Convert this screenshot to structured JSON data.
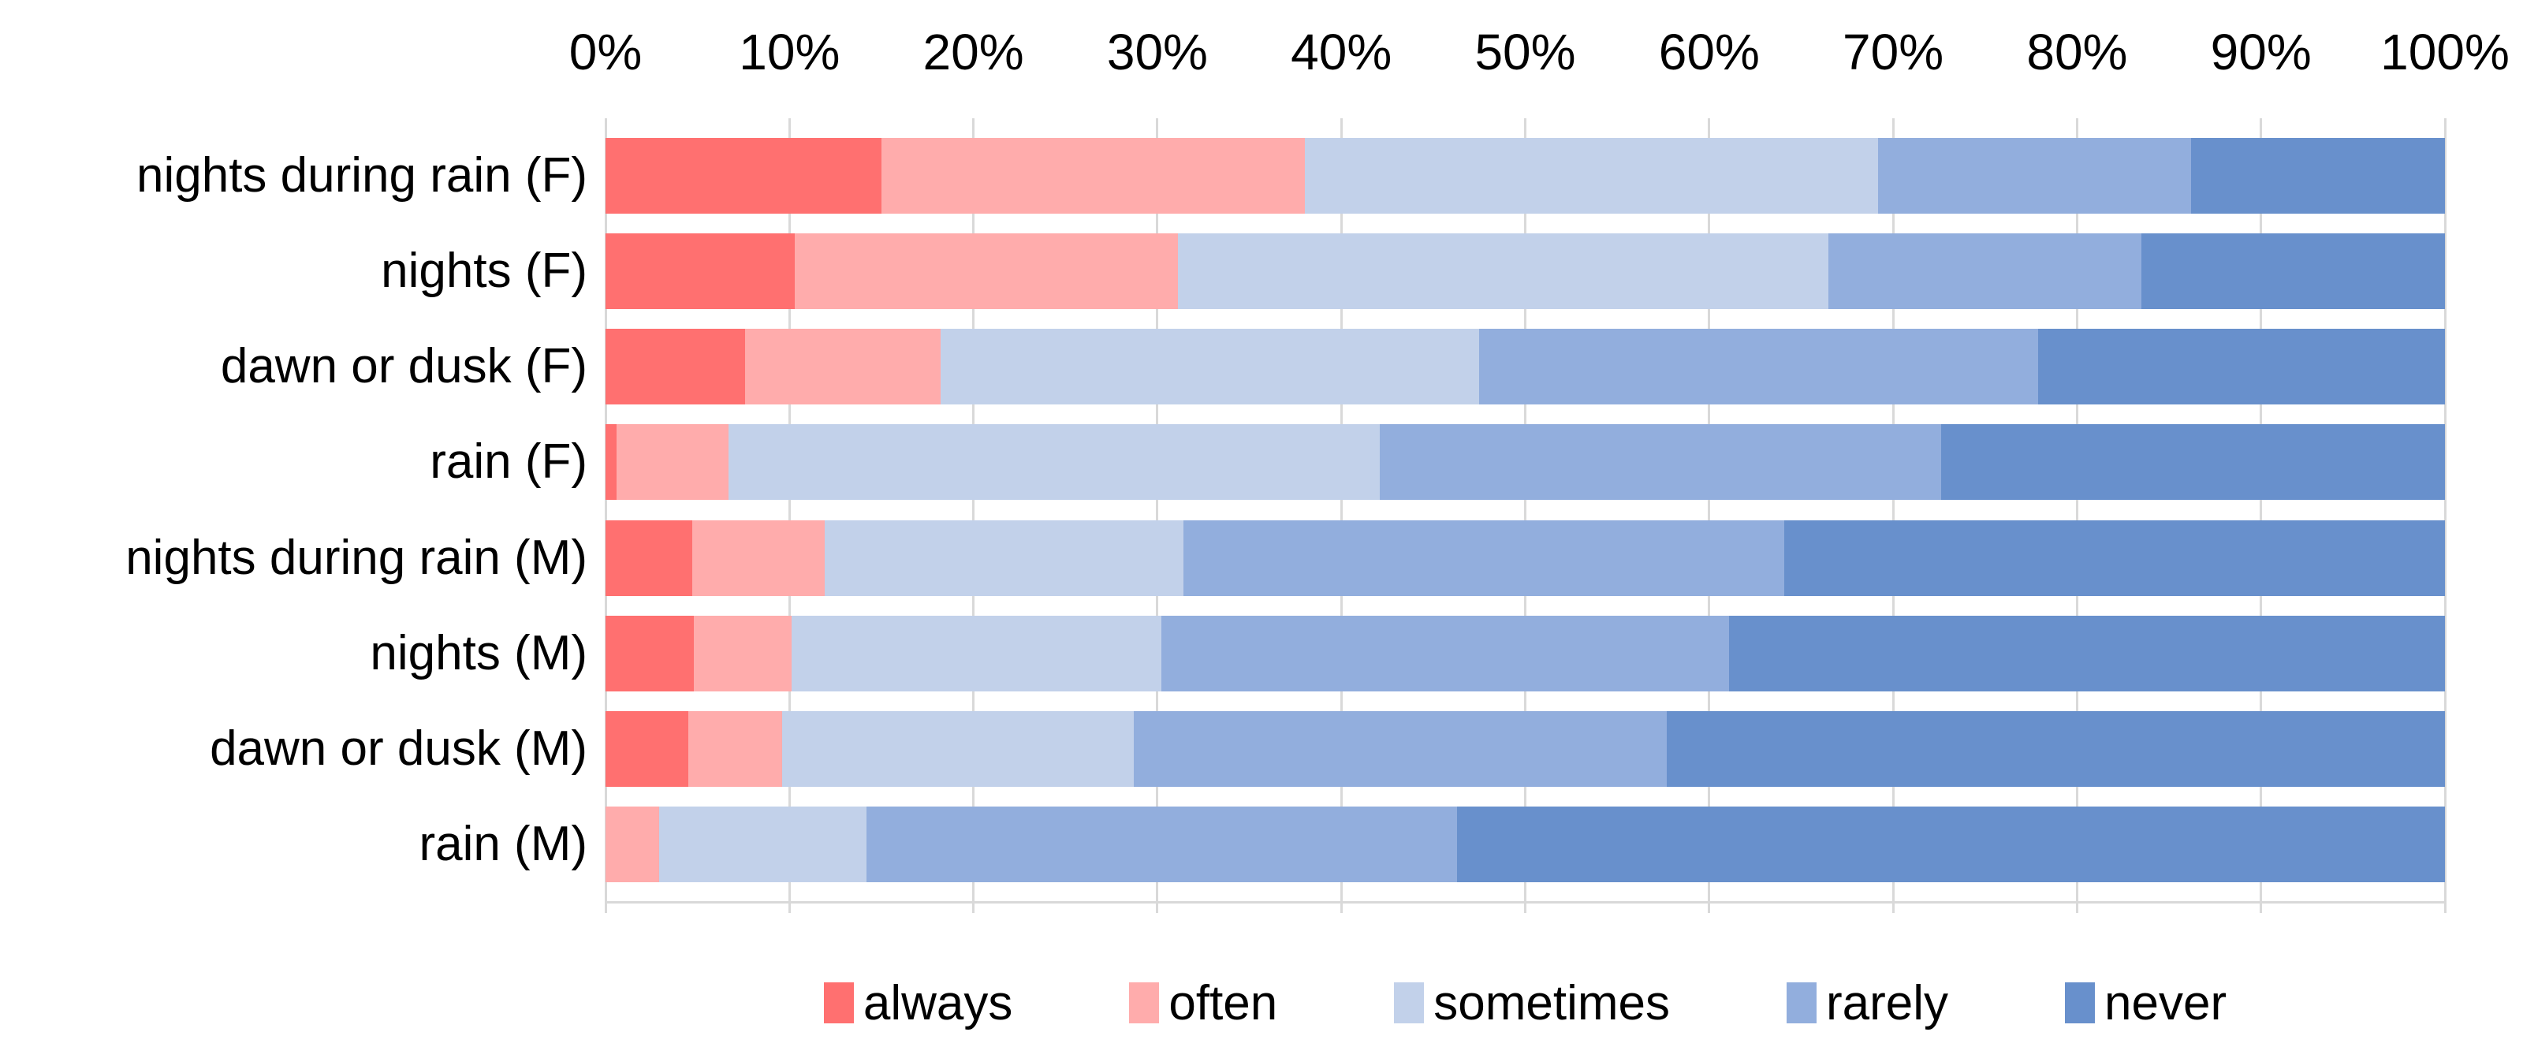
{
  "chart_data": {
    "type": "bar",
    "variant": "horizontal-stacked-100-percent",
    "title": "",
    "categories": [
      "nights during rain (F)",
      "nights (F)",
      "dawn or dusk (F)",
      "rain (F)",
      "nights during rain (M)",
      "nights (M)",
      "dawn or dusk (M)",
      "rain (M)"
    ],
    "series": [
      {
        "name": "always",
        "color": "#ff7070",
        "values": [
          15.0,
          10.3,
          7.6,
          0.6,
          4.7,
          4.8,
          4.5,
          0.0
        ]
      },
      {
        "name": "often",
        "color": "#ffacac",
        "values": [
          23.0,
          20.8,
          10.6,
          6.1,
          7.2,
          5.3,
          5.1,
          2.9
        ]
      },
      {
        "name": "sometimes",
        "color": "#c2d1ea",
        "values": [
          31.2,
          35.4,
          29.3,
          35.4,
          19.5,
          20.1,
          19.1,
          11.3
        ]
      },
      {
        "name": "rarely",
        "color": "#92aedd",
        "values": [
          17.0,
          17.0,
          30.4,
          30.5,
          32.7,
          30.9,
          29.0,
          32.1
        ]
      },
      {
        "name": "never",
        "color": "#6890cc",
        "values": [
          13.8,
          16.5,
          22.1,
          27.4,
          35.9,
          38.9,
          42.3,
          53.7
        ]
      }
    ],
    "x_axis": {
      "position": "top",
      "range": [
        0,
        100
      ],
      "tick_labels": [
        "0%",
        "10%",
        "20%",
        "30%",
        "40%",
        "50%",
        "60%",
        "70%",
        "80%",
        "90%",
        "100%"
      ]
    },
    "legend": {
      "position": "bottom",
      "entries": [
        "always",
        "often",
        "sometimes",
        "rarely",
        "never"
      ]
    },
    "grid": true,
    "grid_color": "#d9d9d9",
    "text_color": "#000000",
    "background_color": "#ffffff"
  }
}
